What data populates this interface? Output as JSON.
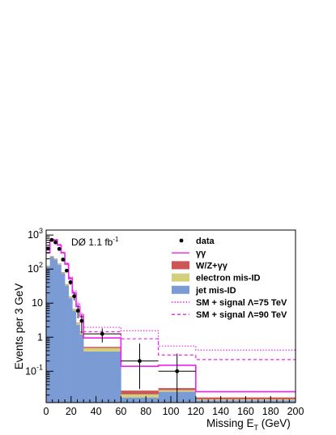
{
  "chart_data": {
    "type": "histogram",
    "title": "",
    "xlabel": "Missing E",
    "xlabel_sub": "T",
    "xlabel_unit": " (GeV)",
    "ylabel": "Events per 3 GeV",
    "annotation": {
      "text": "DØ 1.1 fb",
      "sup": "-1"
    },
    "xlim": [
      0,
      200
    ],
    "ylim": [
      0.012,
      1400
    ],
    "yscale": "log",
    "grid": false,
    "legend_position": "top-right",
    "xticks": [
      0,
      20,
      40,
      60,
      80,
      100,
      120,
      140,
      160,
      180,
      200
    ],
    "yticks": [
      {
        "value": 1000,
        "base": "10",
        "exp": "3"
      },
      {
        "value": 100,
        "base": "10",
        "exp": "2"
      },
      {
        "value": 10,
        "base": "10",
        "exp": ""
      },
      {
        "value": 1,
        "base": "1",
        "exp": ""
      },
      {
        "value": 0.1,
        "base": "10",
        "exp": "-1"
      }
    ],
    "bin_edges": [
      0,
      3,
      6,
      9,
      12,
      15,
      18,
      21,
      24,
      27,
      30,
      60,
      90,
      120,
      200
    ],
    "stack": [
      {
        "name": "jet mis-ID",
        "color": "#7b9bd4",
        "values": [
          120,
          230,
          190,
          135,
          75,
          33,
          14,
          6,
          2.3,
          1.2,
          0.38,
          0.017,
          0.025,
          0.014
        ]
      },
      {
        "name": "electron mis-ID",
        "color": "#d2d07a",
        "values": [
          5,
          10,
          10,
          7,
          4,
          2,
          1,
          0.5,
          0.25,
          0.2,
          0.1,
          0.004,
          0.003,
          0.001
        ]
      },
      {
        "name": "W/Z+γγ",
        "color": "#cc5555",
        "values": [
          2,
          4,
          4,
          3,
          2,
          1,
          0.5,
          0.2,
          0.1,
          0.06,
          0.04,
          0.006,
          0.004,
          0.002
        ]
      }
    ],
    "lines": [
      {
        "name": "γγ",
        "color": "#ee22ee",
        "style": "solid",
        "values": [
          300,
          700,
          720,
          510,
          300,
          140,
          52,
          20,
          8,
          4,
          0.95,
          0.14,
          0.15,
          0.025
        ]
      },
      {
        "name": "SM + signal Λ=75 TeV",
        "color": "#ee22ee",
        "style": "dotted",
        "values": [
          310,
          720,
          740,
          530,
          315,
          150,
          58,
          23,
          10,
          5,
          1.95,
          1.55,
          0.55,
          0.42
        ]
      },
      {
        "name": "SM + signal Λ=90 TeV",
        "color": "#ee22ee",
        "style": "dashed",
        "values": [
          305,
          710,
          730,
          520,
          308,
          145,
          55,
          21,
          9,
          4.5,
          1.45,
          0.9,
          0.3,
          0.22
        ]
      }
    ],
    "data": {
      "name": "data",
      "points": [
        {
          "x": 1.5,
          "y": 400
        },
        {
          "x": 4.5,
          "y": 720
        },
        {
          "x": 7.5,
          "y": 610
        },
        {
          "x": 10.5,
          "y": 390
        },
        {
          "x": 13.5,
          "y": 190
        },
        {
          "x": 16.5,
          "y": 90
        },
        {
          "x": 19.5,
          "y": 41
        },
        {
          "x": 22.5,
          "y": 16
        },
        {
          "x": 25.5,
          "y": 6
        },
        {
          "x": 28.5,
          "y": 3
        },
        {
          "x": 45,
          "y": 1.25
        },
        {
          "x": 75,
          "y": 0.2
        },
        {
          "x": 105,
          "y": 0.1
        }
      ],
      "xerr": [
        0,
        0,
        0,
        0,
        0,
        0,
        0,
        0,
        0,
        0,
        15,
        15,
        15
      ],
      "yerr_up": [
        20,
        27,
        25,
        20,
        14,
        9.5,
        6.4,
        4,
        2.4,
        1.7,
        0.55,
        0.45,
        0.23
      ],
      "yerr_down": [
        20,
        27,
        25,
        20,
        14,
        9.5,
        6.4,
        4,
        2.4,
        1.7,
        0.55,
        0.17,
        0.09
      ]
    },
    "legend": [
      {
        "label": "data",
        "kind": "marker"
      },
      {
        "label": "γγ",
        "kind": "line-solid"
      },
      {
        "label": "W/Z+γγ",
        "kind": "box",
        "color": "#cc5555"
      },
      {
        "label": "electron mis-ID",
        "kind": "box",
        "color": "#d2d07a"
      },
      {
        "label": "jet mis-ID",
        "kind": "box",
        "color": "#7b9bd4"
      },
      {
        "label": "SM + signal Λ=75 TeV",
        "kind": "line-dotted"
      },
      {
        "label": "SM + signal Λ=90 TeV",
        "kind": "line-dashed"
      }
    ]
  }
}
